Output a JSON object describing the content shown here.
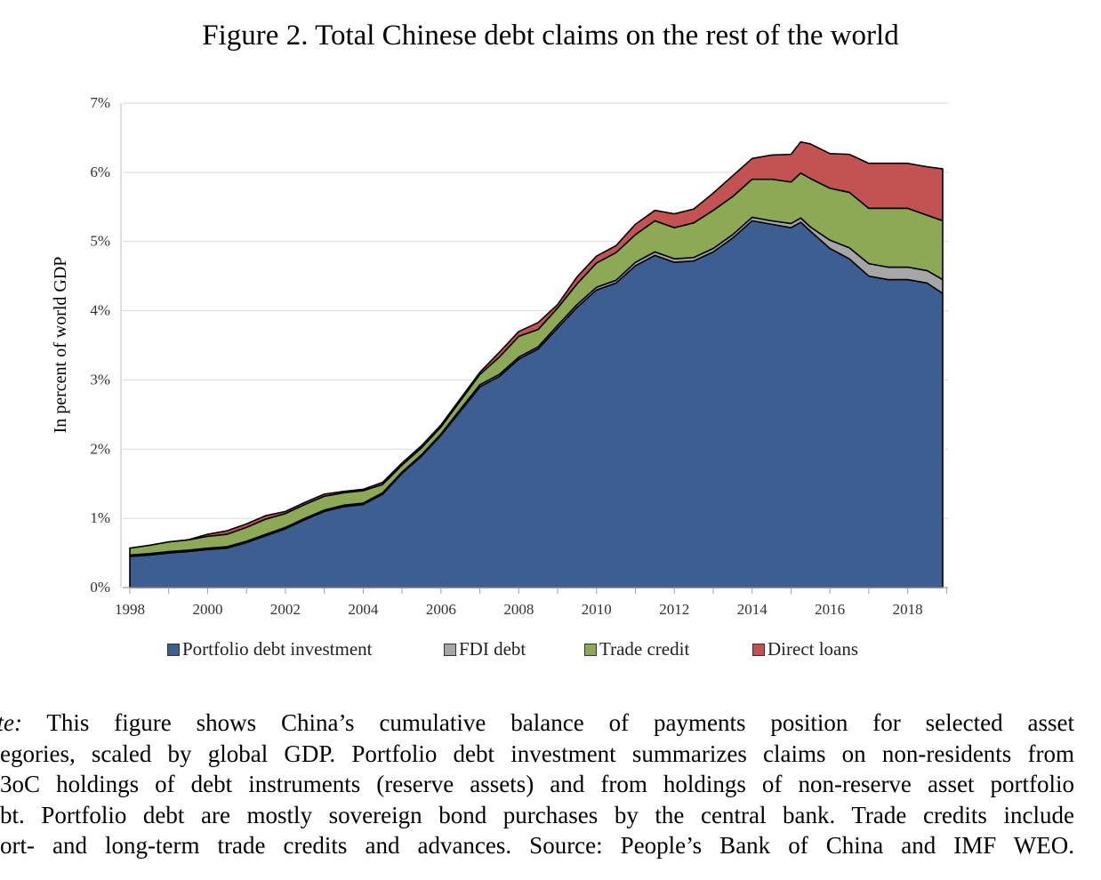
{
  "figure": {
    "title": "Figure 2. Total Chinese debt claims on the rest of the world"
  },
  "chart_data": {
    "type": "area",
    "stacked": true,
    "title": "Figure 2. Total Chinese debt claims on the rest of the world",
    "xlabel": "",
    "ylabel": "In percent of world GDP",
    "xlim": [
      1998,
      2018.9
    ],
    "ylim": [
      0,
      7
    ],
    "x_ticks": [
      1998,
      2000,
      2002,
      2004,
      2006,
      2008,
      2010,
      2012,
      2014,
      2016,
      2018
    ],
    "x_tick_labels": [
      "1998",
      "2000",
      "2002",
      "2004",
      "2006",
      "2008",
      "2010",
      "2012",
      "2014",
      "2016",
      "2018"
    ],
    "y_ticks": [
      0,
      1,
      2,
      3,
      4,
      5,
      6,
      7
    ],
    "y_tick_labels": [
      "0%",
      "1%",
      "2%",
      "3%",
      "4%",
      "5%",
      "6%",
      "7%"
    ],
    "grid": "horizontal",
    "legend_position": "bottom",
    "x": [
      1998.0,
      1998.5,
      1999.0,
      1999.5,
      2000.0,
      2000.5,
      2001.0,
      2001.5,
      2002.0,
      2002.5,
      2003.0,
      2003.5,
      2004.0,
      2004.5,
      2005.0,
      2005.5,
      2006.0,
      2006.5,
      2007.0,
      2007.5,
      2008.0,
      2008.5,
      2009.0,
      2009.5,
      2010.0,
      2010.5,
      2011.0,
      2011.5,
      2012.0,
      2012.5,
      2013.0,
      2013.5,
      2014.0,
      2014.5,
      2015.0,
      2015.25,
      2015.5,
      2016.0,
      2016.5,
      2017.0,
      2017.5,
      2018.0,
      2018.5,
      2018.9
    ],
    "series": [
      {
        "name": "Portfolio debt investment",
        "color": "#3c5e91",
        "values": [
          0.45,
          0.47,
          0.5,
          0.52,
          0.55,
          0.57,
          0.65,
          0.75,
          0.85,
          0.98,
          1.1,
          1.17,
          1.2,
          1.35,
          1.65,
          1.9,
          2.2,
          2.55,
          2.9,
          3.05,
          3.3,
          3.45,
          3.75,
          4.05,
          4.3,
          4.4,
          4.65,
          4.8,
          4.7,
          4.72,
          4.85,
          5.05,
          5.3,
          5.25,
          5.2,
          5.28,
          5.15,
          4.9,
          4.75,
          4.5,
          4.45,
          4.45,
          4.4,
          4.25
        ]
      },
      {
        "name": "FDI debt",
        "color": "#a6a6a6",
        "values": [
          0.02,
          0.02,
          0.02,
          0.02,
          0.02,
          0.02,
          0.02,
          0.02,
          0.02,
          0.02,
          0.02,
          0.02,
          0.02,
          0.02,
          0.02,
          0.02,
          0.02,
          0.03,
          0.03,
          0.03,
          0.03,
          0.03,
          0.04,
          0.04,
          0.04,
          0.04,
          0.05,
          0.05,
          0.05,
          0.05,
          0.05,
          0.05,
          0.05,
          0.05,
          0.06,
          0.06,
          0.06,
          0.12,
          0.16,
          0.18,
          0.18,
          0.18,
          0.18,
          0.2
        ]
      },
      {
        "name": "Trade credit",
        "color": "#8caa55",
        "values": [
          0.1,
          0.12,
          0.14,
          0.15,
          0.17,
          0.18,
          0.2,
          0.22,
          0.2,
          0.2,
          0.2,
          0.18,
          0.18,
          0.12,
          0.1,
          0.1,
          0.1,
          0.12,
          0.15,
          0.25,
          0.3,
          0.25,
          0.25,
          0.3,
          0.35,
          0.4,
          0.4,
          0.45,
          0.45,
          0.5,
          0.55,
          0.55,
          0.55,
          0.6,
          0.6,
          0.65,
          0.7,
          0.75,
          0.8,
          0.8,
          0.85,
          0.85,
          0.8,
          0.85
        ]
      },
      {
        "name": "Direct loans",
        "color": "#c35352",
        "values": [
          0.0,
          0.0,
          0.0,
          0.0,
          0.03,
          0.05,
          0.05,
          0.05,
          0.03,
          0.03,
          0.03,
          0.02,
          0.02,
          0.03,
          0.03,
          0.03,
          0.03,
          0.03,
          0.03,
          0.07,
          0.07,
          0.1,
          0.05,
          0.1,
          0.1,
          0.1,
          0.15,
          0.15,
          0.2,
          0.2,
          0.25,
          0.3,
          0.3,
          0.35,
          0.4,
          0.45,
          0.5,
          0.5,
          0.55,
          0.65,
          0.65,
          0.65,
          0.7,
          0.75
        ]
      }
    ]
  },
  "note": {
    "lines": [
      "ote: This figure shows China’s cumulative balance of payments position for selected asset",
      "egories, scaled by global GDP. Portfolio debt investment summarizes claims on non-residents from",
      "3oC holdings of debt instruments (reserve assets) and from holdings of non-reserve asset portfolio",
      "bt. Portfolio debt are mostly sovereign bond purchases by the central bank. Trade credits include",
      "ort- and long-term trade credits and advances. Source: People’s Bank of China and IMF WEO."
    ]
  }
}
